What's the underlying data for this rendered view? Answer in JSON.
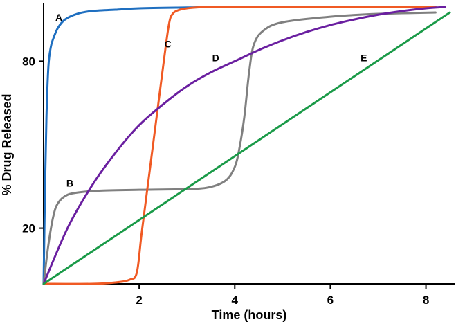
{
  "chart_data": {
    "type": "line",
    "xlabel": "Time (hours)",
    "ylabel": "% Drug Released",
    "xlim": [
      0,
      8.6
    ],
    "ylim": [
      0,
      100
    ],
    "x_ticks": [
      {
        "value": 2,
        "label": "2"
      },
      {
        "value": 4,
        "label": "4"
      },
      {
        "value": 6,
        "label": "6"
      },
      {
        "value": 8,
        "label": "8"
      }
    ],
    "y_ticks": [
      {
        "value": 20,
        "label": "20"
      },
      {
        "value": 80,
        "label": "80"
      }
    ],
    "grid": false,
    "legend": "none",
    "series": [
      {
        "name": "A",
        "color": "#1f6fc0",
        "x": [
          0,
          0.03,
          0.06,
          0.1,
          0.15,
          0.2,
          0.3,
          0.45,
          0.7,
          1.0,
          1.5,
          2.0,
          3.0,
          4.0,
          6.0,
          8.2
        ],
        "y": [
          0,
          35,
          60,
          78,
          85,
          88,
          92,
          95,
          97,
          98,
          98.5,
          99,
          99.3,
          99.5,
          99.5,
          99.5
        ]
      },
      {
        "name": "B",
        "color": "#808080",
        "x": [
          0,
          0.1,
          0.2,
          0.3,
          0.5,
          0.8,
          1.2,
          2.0,
          2.8,
          3.4,
          3.8,
          4.0,
          4.1,
          4.2,
          4.3,
          4.4,
          4.6,
          5.0,
          6.0,
          7.0,
          8.2
        ],
        "y": [
          0,
          14,
          24,
          29,
          32,
          33,
          33.5,
          33.8,
          34,
          34.5,
          37,
          42,
          49,
          60,
          76,
          86,
          91,
          94,
          96,
          97,
          97.5
        ]
      },
      {
        "name": "C",
        "color": "#f05a24",
        "x": [
          0,
          1.0,
          1.5,
          1.8,
          1.95,
          2.05,
          2.2,
          2.35,
          2.5,
          2.62,
          2.7,
          2.85,
          3.1,
          3.5,
          4.5,
          6.0,
          8.2
        ],
        "y": [
          0,
          0,
          0.5,
          1.5,
          4,
          18,
          38,
          58,
          78,
          93,
          97,
          98.5,
          99.2,
          99.5,
          99.5,
          99.5,
          99.5
        ]
      },
      {
        "name": "D",
        "color": "#6a1fa0",
        "x": [
          0,
          0.5,
          1.0,
          1.5,
          2.0,
          2.5,
          3.0,
          3.5,
          4.0,
          4.5,
          5.0,
          5.5,
          6.0,
          6.5,
          7.0,
          7.5,
          8.0,
          8.4
        ],
        "y": [
          0,
          20,
          35,
          47,
          57,
          64.5,
          71,
          76,
          80,
          84,
          87.5,
          90.5,
          93,
          95,
          96.7,
          98,
          99,
          99.5
        ]
      },
      {
        "name": "E",
        "color": "#1a9a48",
        "x": [
          0,
          8.5
        ],
        "y": [
          0,
          97.5
        ]
      }
    ],
    "annotations": [
      {
        "text": "A",
        "x": 0.32,
        "y": 94.5
      },
      {
        "text": "B",
        "x": 0.55,
        "y": 35
      },
      {
        "text": "C",
        "x": 2.6,
        "y": 85
      },
      {
        "text": "D",
        "x": 3.6,
        "y": 80
      },
      {
        "text": "E",
        "x": 6.7,
        "y": 80
      }
    ]
  }
}
